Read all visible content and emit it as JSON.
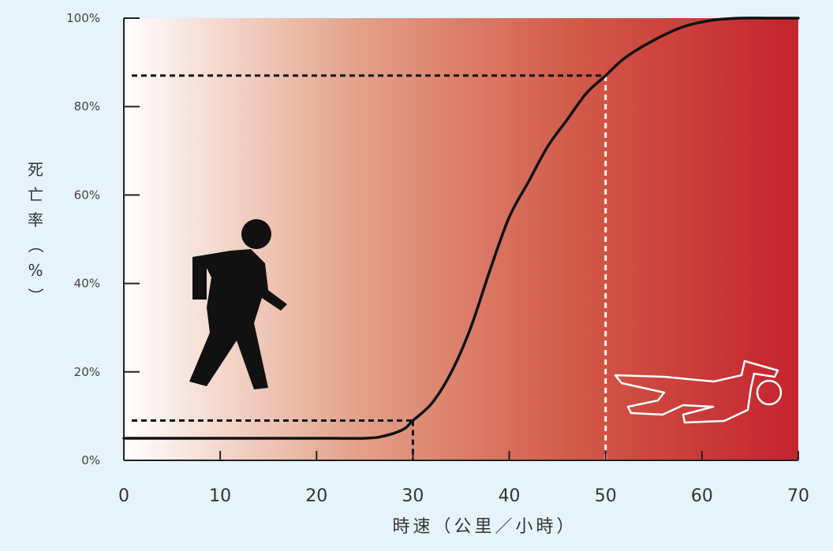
{
  "chart_data": {
    "type": "line",
    "title": "",
    "xlabel": "時速（公里／小時）",
    "ylabel": "死亡率（%）",
    "xlim": [
      0,
      70
    ],
    "ylim": [
      0,
      100
    ],
    "x_ticks": [
      0,
      10,
      20,
      30,
      40,
      50,
      60,
      70
    ],
    "x_tick_labels": [
      "0",
      "10",
      "20",
      "30",
      "40",
      "50",
      "60",
      "70"
    ],
    "y_ticks": [
      0,
      20,
      40,
      60,
      80,
      100
    ],
    "y_tick_labels": [
      "0%",
      "20%",
      "40%",
      "60%",
      "80%",
      "100%"
    ],
    "grid": false,
    "legend": "none",
    "background_gradient": [
      "#ffffff",
      "#e4a48c",
      "#d25a48",
      "#c4232e"
    ],
    "curve_color": "#111111",
    "series": [
      {
        "x": [
          0,
          5,
          10,
          15,
          20,
          25,
          27,
          29,
          30,
          32,
          34,
          36,
          38,
          40,
          42,
          44,
          46,
          48,
          50,
          52,
          55,
          58,
          61,
          64,
          67,
          70
        ],
        "y": [
          5,
          5,
          5,
          5,
          5,
          5,
          5.5,
          7,
          9,
          13,
          20,
          30,
          43,
          55,
          63,
          71,
          77,
          83,
          87,
          91,
          95,
          98,
          99.5,
          100,
          100,
          100
        ]
      }
    ],
    "reference_points": [
      {
        "x": 30,
        "y": 9,
        "line_color": "#111111",
        "style": "dashed"
      },
      {
        "x": 50,
        "y": 87,
        "line_color": "#ffffff",
        "style": "dashed",
        "h_line_color": "#111111"
      }
    ],
    "icons": [
      {
        "name": "walking-pedestrian-icon",
        "color": "#111111"
      },
      {
        "name": "fallen-body-outline-icon",
        "color": "#ffffff"
      }
    ]
  }
}
